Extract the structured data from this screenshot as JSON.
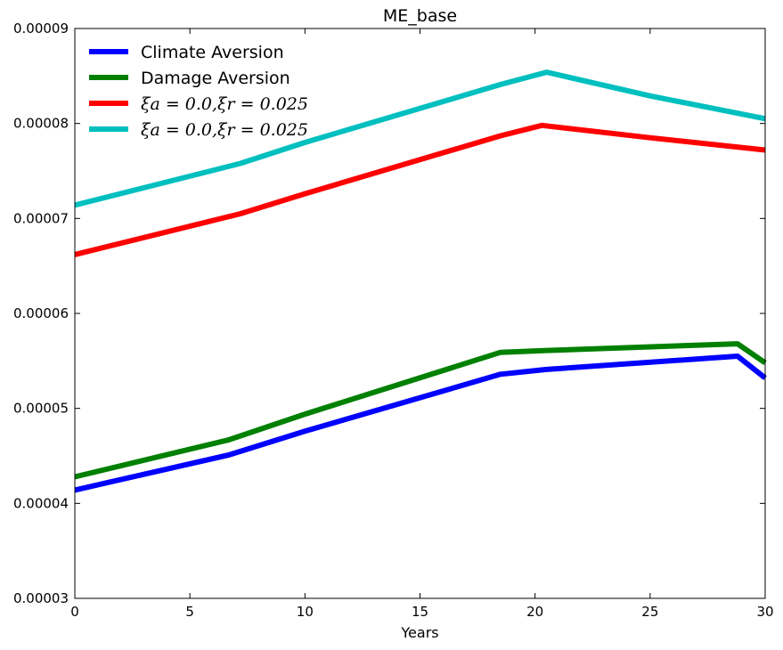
{
  "chart_data": {
    "type": "line",
    "title": "ME_base",
    "xlabel": "Years",
    "ylabel": "",
    "xlim": [
      0,
      30
    ],
    "ylim": [
      3e-05,
      9e-05
    ],
    "x_ticks": [
      0,
      5,
      10,
      15,
      20,
      25,
      30
    ],
    "x_tick_labels": [
      "0",
      "5",
      "10",
      "15",
      "20",
      "25",
      "30"
    ],
    "y_ticks": [
      3e-05,
      4e-05,
      5e-05,
      6e-05,
      7e-05,
      8e-05,
      9e-05
    ],
    "y_tick_labels": [
      "0.00003",
      "0.00004",
      "0.00005",
      "0.00006",
      "0.00007",
      "0.00008",
      "0.00009"
    ],
    "legend_position": "top-left",
    "series": [
      {
        "name": "Climate Aversion",
        "color": "#0000ff",
        "math": false,
        "x": [
          0,
          6.7,
          10,
          18.5,
          20.5,
          28.8,
          30
        ],
        "y": [
          4.14e-05,
          4.51e-05,
          4.76e-05,
          5.36e-05,
          5.41e-05,
          5.55e-05,
          5.32e-05
        ]
      },
      {
        "name": "Damage Aversion",
        "color": "#008000",
        "math": false,
        "x": [
          0,
          6.7,
          10,
          18.5,
          20.5,
          28.8,
          30
        ],
        "y": [
          4.28e-05,
          4.67e-05,
          4.94e-05,
          5.59e-05,
          5.61e-05,
          5.68e-05,
          5.48e-05
        ]
      },
      {
        "name": "ξa = 0.0,ξr = 0.025",
        "color": "#ff0000",
        "math": true,
        "x": [
          0,
          7.2,
          10,
          18.5,
          20.3,
          25,
          30
        ],
        "y": [
          6.62e-05,
          7.05e-05,
          7.26e-05,
          7.87e-05,
          7.98e-05,
          7.85e-05,
          7.72e-05
        ]
      },
      {
        "name": "ξa = 0.0,ξr = 0.025",
        "color": "#00bfbf",
        "math": true,
        "x": [
          0,
          7.2,
          10,
          18.5,
          20.5,
          25,
          30
        ],
        "y": [
          7.14e-05,
          7.58e-05,
          7.8e-05,
          8.41e-05,
          8.54e-05,
          8.29e-05,
          8.05e-05
        ]
      }
    ]
  }
}
